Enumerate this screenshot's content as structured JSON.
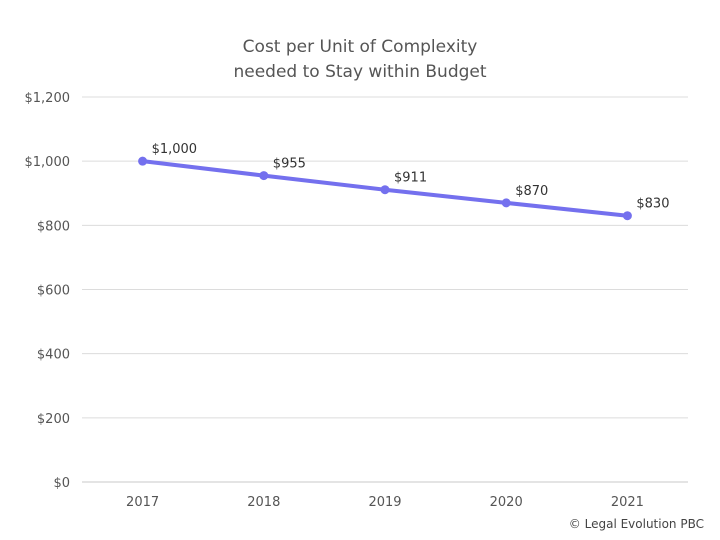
{
  "chart_data": {
    "type": "line",
    "title": [
      "Cost per Unit of Complexity",
      "needed to Stay within Budget"
    ],
    "xlabel": "",
    "ylabel": "",
    "categories": [
      "2017",
      "2018",
      "2019",
      "2020",
      "2021"
    ],
    "series": [
      {
        "values": [
          1000,
          955,
          911,
          870,
          830
        ],
        "data_labels": [
          "$1,000",
          "$955",
          "$911",
          "$870",
          "$830"
        ],
        "color": "#7470EE"
      }
    ],
    "ylim": [
      0,
      1200
    ],
    "yticks": [
      0,
      200,
      400,
      600,
      800,
      1000,
      1200
    ],
    "ytick_labels": [
      "$0",
      "$200",
      "$400",
      "$600",
      "$800",
      "$1,000",
      "$1,200"
    ],
    "grid": true,
    "legend": "none"
  },
  "footer": {
    "copyright": "© Legal Evolution PBC"
  }
}
